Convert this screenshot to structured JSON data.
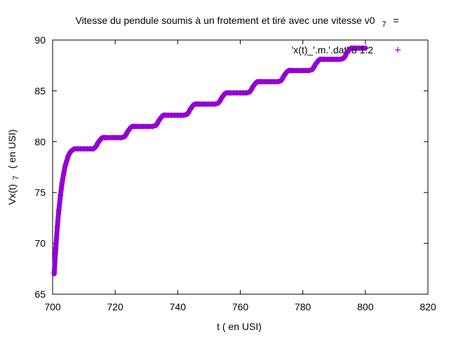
{
  "chart_data": {
    "type": "scatter",
    "title_main": "Vitesse du pendule soumis à un frotement et tiré avec une vitesse v0",
    "title_sub": "7",
    "title_tail": "=",
    "xlabel": "t ( en USI)",
    "ylabel_main": "Vx(t)",
    "ylabel_sub": "7",
    "ylabel_tail": "( en USI)",
    "xlim": [
      700,
      820
    ],
    "ylim": [
      65,
      90
    ],
    "xticks": [
      700,
      720,
      740,
      760,
      780,
      800,
      820
    ],
    "yticks": [
      65,
      70,
      75,
      80,
      85,
      90
    ],
    "grid": false,
    "legend_position": "top-right",
    "series": [
      {
        "name": "'x(t)_'.m.'.dat' u 1:2",
        "color": "#9400d3",
        "marker": "plus",
        "x": [
          700.5,
          701.0,
          701.5,
          702.0,
          702.5,
          703.0,
          703.5,
          704.0,
          704.5,
          705.0,
          705.5,
          706.0,
          706.5,
          707.0,
          708.0,
          709.0,
          710.0,
          711.0,
          712.0,
          713.0,
          713.5,
          714.0,
          714.5,
          715.0,
          715.5,
          716.0,
          716.5,
          717.0,
          718.0,
          719.0,
          720.0,
          721.0,
          722.0,
          723.0,
          723.5,
          724.0,
          724.5,
          725.0,
          725.5,
          726.0,
          726.5,
          727.0,
          728.0,
          729.0,
          730.0,
          731.0,
          732.0,
          733.0,
          733.5,
          734.0,
          734.5,
          735.0,
          735.5,
          736.0,
          736.5,
          737.0,
          738.0,
          739.0,
          740.0,
          741.0,
          742.0,
          743.0,
          743.5,
          744.0,
          744.5,
          745.0,
          745.5,
          746.0,
          746.5,
          747.0,
          748.0,
          749.0,
          750.0,
          751.0,
          752.0,
          753.0,
          753.5,
          754.0,
          754.5,
          755.0,
          755.5,
          756.0,
          756.5,
          757.0,
          758.0,
          759.0,
          760.0,
          761.0,
          762.0,
          763.0,
          763.5,
          764.0,
          764.5,
          765.0,
          765.5,
          766.0,
          766.5,
          767.0,
          768.0,
          769.0,
          770.0,
          771.0,
          772.0,
          773.0,
          773.5,
          774.0,
          774.5,
          775.0,
          775.5,
          776.0,
          776.5,
          777.0,
          778.0,
          779.0,
          780.0,
          781.0,
          782.0,
          783.0,
          783.5,
          784.0,
          784.5,
          785.0,
          785.5,
          786.0,
          786.5,
          787.0,
          788.0,
          789.0,
          790.0,
          791.0,
          792.0,
          793.0,
          793.5,
          794.0,
          794.5,
          795.0,
          795.5,
          796.0,
          796.5,
          797.0,
          798.0,
          799.0,
          800.0
        ],
        "y": [
          67.0,
          69.5,
          71.6,
          73.3,
          74.7,
          75.9,
          76.8,
          77.6,
          78.1,
          78.6,
          78.9,
          79.1,
          79.2,
          79.3,
          79.3,
          79.3,
          79.3,
          79.3,
          79.3,
          79.3,
          79.4,
          79.6,
          79.9,
          80.1,
          80.3,
          80.4,
          80.4,
          80.4,
          80.4,
          80.4,
          80.4,
          80.4,
          80.4,
          80.5,
          80.7,
          81.0,
          81.2,
          81.4,
          81.5,
          81.5,
          81.5,
          81.5,
          81.5,
          81.5,
          81.5,
          81.5,
          81.5,
          81.6,
          81.8,
          82.1,
          82.3,
          82.5,
          82.6,
          82.6,
          82.6,
          82.6,
          82.6,
          82.6,
          82.6,
          82.6,
          82.6,
          82.7,
          82.9,
          83.2,
          83.4,
          83.6,
          83.7,
          83.7,
          83.7,
          83.7,
          83.7,
          83.7,
          83.7,
          83.7,
          83.7,
          83.8,
          84.0,
          84.3,
          84.5,
          84.7,
          84.8,
          84.8,
          84.8,
          84.8,
          84.8,
          84.8,
          84.8,
          84.8,
          84.8,
          84.9,
          85.1,
          85.4,
          85.6,
          85.8,
          85.9,
          85.9,
          85.9,
          85.9,
          85.9,
          85.9,
          85.9,
          85.9,
          85.9,
          86.0,
          86.2,
          86.5,
          86.7,
          86.9,
          87.0,
          87.0,
          87.0,
          87.0,
          87.0,
          87.0,
          87.0,
          87.0,
          87.0,
          87.1,
          87.3,
          87.6,
          87.8,
          88.0,
          88.1,
          88.1,
          88.1,
          88.1,
          88.1,
          88.1,
          88.1,
          88.1,
          88.1,
          88.2,
          88.4,
          88.7,
          88.9,
          89.1,
          89.2,
          89.2,
          89.2,
          89.2,
          89.2,
          89.2,
          89.2
        ]
      }
    ]
  }
}
